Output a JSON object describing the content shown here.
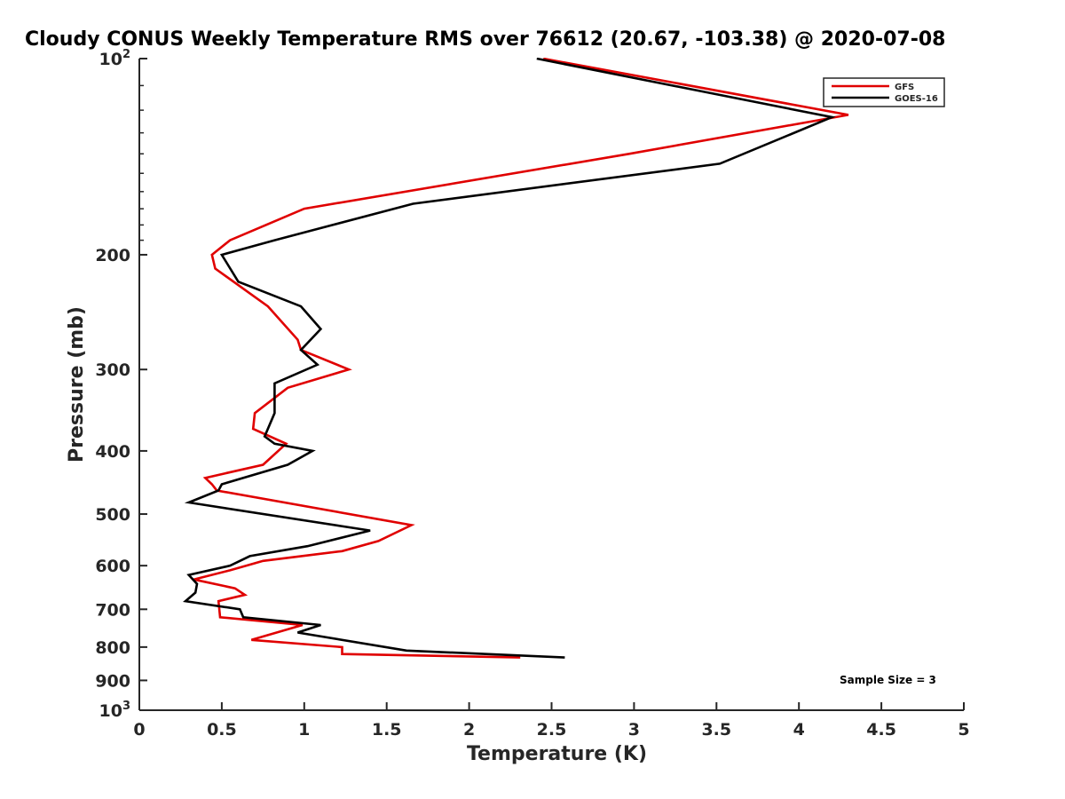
{
  "chart_data": {
    "type": "line",
    "title": "Cloudy CONUS Weekly Temperature RMS over 76612 (20.67, -103.38) @ 2020-07-08",
    "xlabel": "Temperature (K)",
    "ylabel": "Pressure (mb)",
    "xlim": [
      0,
      5
    ],
    "ylim": [
      100,
      1000
    ],
    "yscale": "log",
    "yreversed": true,
    "xticks": [
      0,
      0.5,
      1,
      1.5,
      2,
      2.5,
      3,
      3.5,
      4,
      4.5,
      5
    ],
    "xtick_labels": [
      "0",
      "0.5",
      "1",
      "1.5",
      "2",
      "2.5",
      "3",
      "3.5",
      "4",
      "4.5",
      "5"
    ],
    "yticks": [
      200,
      300,
      400,
      500,
      600,
      700,
      800,
      900
    ],
    "ytick_labels": [
      "200",
      "300",
      "400",
      "500",
      "600",
      "700",
      "800",
      "900"
    ],
    "ytick_end_labels": {
      "top": {
        "base": "10",
        "exp": "2"
      },
      "bottom": {
        "base": "10",
        "exp": "3"
      }
    },
    "grid": false,
    "legend_position": "top-right",
    "annotation": "Sample Size = 3",
    "series": [
      {
        "name": "GFS",
        "color": "#e00000",
        "x": [
          2.45,
          4.3,
          2.97,
          1.0,
          0.55,
          0.44,
          0.46,
          0.78,
          0.96,
          0.98,
          1.27,
          0.9,
          0.7,
          0.69,
          0.89,
          0.75,
          0.4,
          0.44,
          0.47,
          1.65,
          1.45,
          1.23,
          0.75,
          0.55,
          0.33,
          0.58,
          0.64,
          0.48,
          0.49,
          0.99,
          0.68,
          1.23,
          1.23,
          2.31
        ],
        "y": [
          100,
          122,
          140,
          170,
          190,
          200,
          210,
          240,
          270,
          280,
          300,
          320,
          350,
          370,
          390,
          420,
          440,
          450,
          460,
          520,
          550,
          570,
          590,
          610,
          630,
          650,
          665,
          680,
          720,
          740,
          780,
          800,
          820,
          830
        ]
      },
      {
        "name": "GOES-16",
        "color": "#000000",
        "x": [
          2.41,
          4.2,
          3.52,
          1.66,
          0.82,
          0.5,
          0.6,
          0.98,
          1.1,
          0.98,
          1.08,
          0.82,
          0.82,
          0.76,
          0.82,
          1.05,
          0.9,
          0.5,
          0.48,
          0.3,
          1.4,
          1.02,
          0.67,
          0.55,
          0.3,
          0.35,
          0.34,
          0.28,
          0.61,
          0.63,
          1.1,
          0.96,
          1.62,
          2.58
        ],
        "y": [
          100,
          123,
          145,
          167,
          190,
          200,
          220,
          240,
          260,
          280,
          295,
          315,
          350,
          380,
          390,
          400,
          420,
          450,
          460,
          480,
          530,
          560,
          580,
          600,
          620,
          640,
          660,
          680,
          700,
          720,
          740,
          760,
          810,
          830
        ]
      }
    ]
  }
}
